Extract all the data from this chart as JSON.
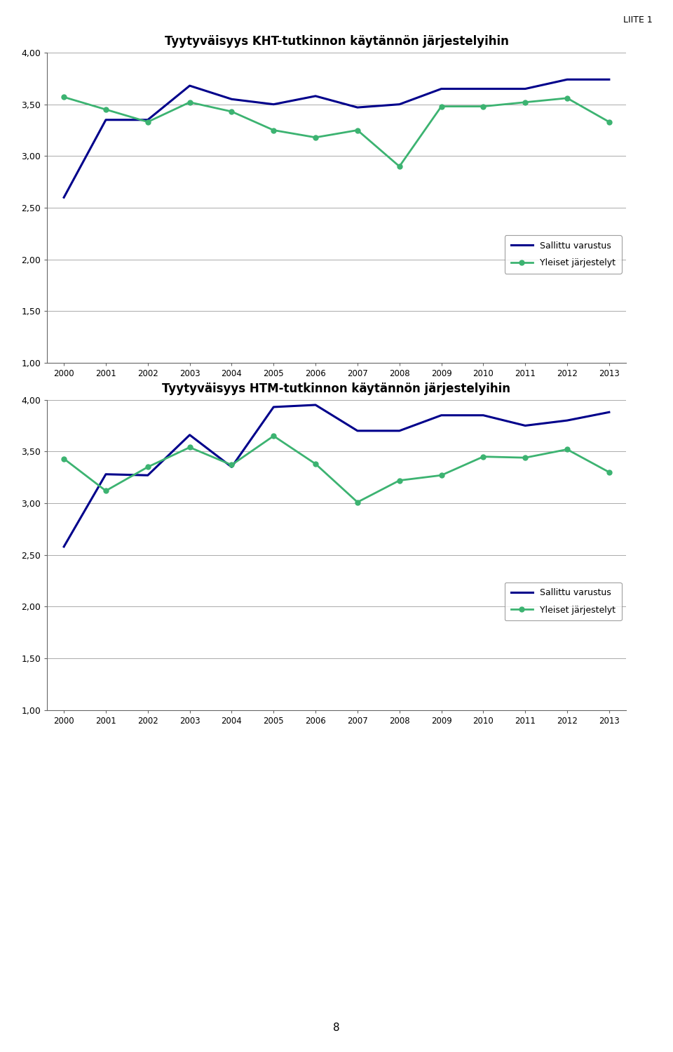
{
  "years": [
    2000,
    2001,
    2002,
    2003,
    2004,
    2005,
    2006,
    2007,
    2008,
    2009,
    2010,
    2011,
    2012,
    2013
  ],
  "chart1": {
    "title": "Tyytyväisyys KHT-tutkinnon käytännön järjestelyihin",
    "sallittu": [
      2.6,
      3.35,
      3.35,
      3.68,
      3.55,
      3.5,
      3.58,
      3.47,
      3.5,
      3.65,
      3.65,
      3.65,
      3.74,
      3.74
    ],
    "yleiset": [
      3.57,
      3.45,
      3.33,
      3.52,
      3.43,
      3.25,
      3.18,
      3.25,
      2.9,
      3.48,
      3.48,
      3.52,
      3.56,
      3.33
    ]
  },
  "chart2": {
    "title": "Tyytyväisyys HTM-tutkinnon käytännön järjestelyihin",
    "sallittu": [
      2.58,
      3.28,
      3.27,
      3.66,
      3.35,
      3.93,
      3.95,
      3.7,
      3.7,
      3.85,
      3.85,
      3.75,
      3.8,
      3.88
    ],
    "yleiset": [
      3.43,
      3.12,
      3.35,
      3.54,
      3.37,
      3.65,
      3.38,
      3.01,
      3.22,
      3.27,
      3.45,
      3.44,
      3.52,
      3.3
    ]
  },
  "sallittu_color": "#00008B",
  "yleiset_color": "#3CB371",
  "ylim": [
    1.0,
    4.0
  ],
  "yticks": [
    1.0,
    1.5,
    2.0,
    2.5,
    3.0,
    3.5,
    4.0
  ],
  "legend_sallittu": "Sallittu varustus",
  "legend_yleiset": "Yleiset järjestelyt",
  "header_text": "LIITE 1",
  "page_number": "8"
}
